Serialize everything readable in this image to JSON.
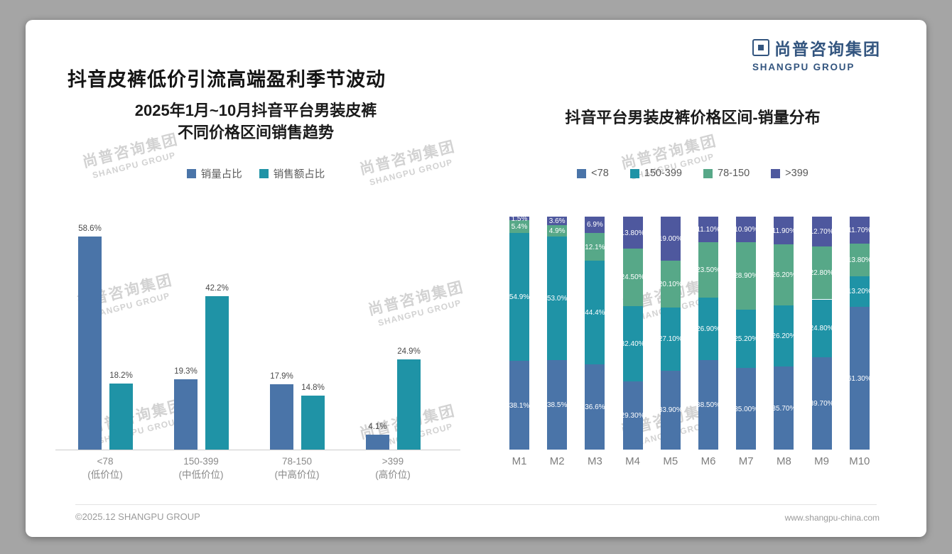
{
  "header": {
    "title": "抖音皮裤低价引流高端盈利季节波动",
    "logo": {
      "name_cn": "尚普咨询集团",
      "name_en": "SHANGPU GROUP"
    }
  },
  "watermark": {
    "line1": "尚普咨询集团",
    "line2": "SHANGPU GROUP"
  },
  "footer": {
    "left": "©2025.12 SHANGPU GROUP",
    "right": "www.shangpu-china.com"
  },
  "colors": {
    "blue": "#4a74a8",
    "teal": "#1f93a6",
    "green": "#57a888",
    "purple": "#4e589e",
    "logo_blue": "#33557f"
  },
  "chart_data": [
    {
      "type": "bar",
      "title": "2025年1月~10月抖音平台男装皮裤不同价格区间销售趋势",
      "title_lines": [
        "2025年1月~10月抖音平台男装皮裤",
        "不同价格区间销售趋势"
      ],
      "unit": "%",
      "ylim": [
        0,
        100
      ],
      "grid": false,
      "legend_position": "top",
      "categories": [
        {
          "line1": "<78",
          "line2": "(低价位)"
        },
        {
          "line1": "150-399",
          "line2": "(中低价位)"
        },
        {
          "line1": "78-150",
          "line2": "(中高价位)"
        },
        {
          "line1": ">399",
          "line2": "(高价位)"
        }
      ],
      "series": [
        {
          "name": "销量占比",
          "color": "#4a74a8",
          "values": [
            58.6,
            19.3,
            17.9,
            4.1
          ],
          "labels": [
            "58.6%",
            "19.3%",
            "17.9%",
            "4.1%"
          ]
        },
        {
          "name": "销售额占比",
          "color": "#1f93a6",
          "values": [
            18.2,
            42.2,
            14.8,
            24.9
          ],
          "labels": [
            "18.2%",
            "42.2%",
            "14.8%",
            "24.9%"
          ]
        }
      ]
    },
    {
      "type": "stacked-bar",
      "title": "抖音平台男装皮裤价格区间-销量分布",
      "unit": "%",
      "stack_total": 100,
      "grid": false,
      "legend_position": "top",
      "categories": [
        "M1",
        "M2",
        "M3",
        "M4",
        "M5",
        "M6",
        "M7",
        "M8",
        "M9",
        "M10"
      ],
      "series": [
        {
          "name": "<78",
          "color": "#4a74a8",
          "values": [
            38.1,
            38.5,
            36.6,
            29.3,
            33.9,
            38.5,
            35.0,
            35.7,
            39.7,
            61.3
          ],
          "labels": [
            "38.1%",
            "38.5%",
            "36.6%",
            "29.30%",
            "33.90%",
            "38.50%",
            "35.00%",
            "35.70%",
            "39.70%",
            "61.30%"
          ]
        },
        {
          "name": "150-399",
          "color": "#1f93a6",
          "values": [
            54.9,
            53.0,
            44.4,
            32.4,
            27.1,
            26.9,
            25.2,
            26.2,
            24.8,
            13.2
          ],
          "labels": [
            "54.9%",
            "53.0%",
            "44.4%",
            "32.40%",
            "27.10%",
            "26.90%",
            "25.20%",
            "26.20%",
            "24.80%",
            "13.20%"
          ]
        },
        {
          "name": "78-150",
          "color": "#57a888",
          "values": [
            5.4,
            4.9,
            12.1,
            24.5,
            20.1,
            23.5,
            28.9,
            26.2,
            22.8,
            13.8
          ],
          "labels": [
            "5.4%",
            "4.9%",
            "12.1%",
            "24.50%",
            "20.10%",
            "23.50%",
            "28.90%",
            "26.20%",
            "22.80%",
            "13.80%"
          ]
        },
        {
          "name": ">399",
          "color": "#4e589e",
          "values": [
            1.5,
            3.6,
            6.9,
            13.8,
            19.0,
            11.1,
            10.9,
            11.9,
            12.7,
            11.7
          ],
          "labels": [
            "1.5%",
            "3.6%",
            "6.9%",
            "13.80%",
            "19.00%",
            "11.10%",
            "10.90%",
            "11.90%",
            "12.70%",
            "11.70%"
          ]
        }
      ]
    }
  ]
}
